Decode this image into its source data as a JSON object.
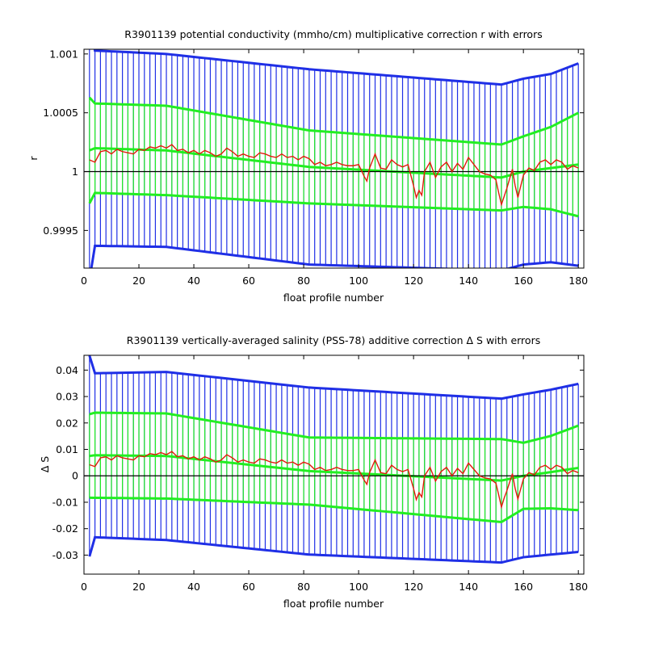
{
  "colors": {
    "error_outer": "#1f2fe6",
    "error_inner": "#22ee22",
    "fit_line": "#22ee22",
    "data_line": "#e11a0c",
    "reference": "#000000"
  },
  "chart_data": [
    {
      "type": "line",
      "title": "R3901139 potential conductivity (mmho/cm) multiplicative correction r with errors",
      "xlabel": "float profile number",
      "ylabel": "r",
      "xlim": [
        0,
        182
      ],
      "ylim": [
        0.99918,
        1.00104
      ],
      "xticks": [
        0,
        20,
        40,
        60,
        80,
        100,
        120,
        140,
        160,
        180
      ],
      "xtick_labels": [
        "0",
        "20",
        "40",
        "60",
        "80",
        "100",
        "120",
        "140",
        "160",
        "180"
      ],
      "yticks": [
        0.9995,
        1.0,
        1.0005,
        1.001
      ],
      "ytick_labels": [
        "0.9995",
        "1",
        "1.0005",
        "1.001"
      ],
      "reference_line": 1.0,
      "grid": false,
      "error_bar_spacing": 2,
      "fit": {
        "x": [
          2,
          3,
          30,
          82,
          152,
          160,
          170,
          180
        ],
        "values": [
          1.00018,
          1.0002,
          1.00018,
          1.00004,
          0.99995,
          1.0,
          1.00003,
          1.00006
        ]
      },
      "inner_error": {
        "x": [
          2,
          3,
          30,
          82,
          152,
          160,
          170,
          180
        ],
        "half_width": [
          0.00045,
          0.00038,
          0.00038,
          0.00031,
          0.00028,
          0.0003,
          0.00035,
          0.00044
        ]
      },
      "outer_error": {
        "x": [
          2,
          3,
          30,
          82,
          152,
          160,
          170,
          180
        ],
        "half_width": [
          0.0011,
          0.00083,
          0.00082,
          0.00083,
          0.00079,
          0.00079,
          0.0008,
          0.00086
        ]
      },
      "series": [
        {
          "x": [
            2,
            4,
            6,
            8,
            10,
            12,
            14,
            16,
            18,
            20,
            22,
            24,
            26,
            28,
            30,
            32,
            34,
            36,
            38,
            40,
            42,
            44,
            46,
            48,
            50,
            52,
            54,
            56,
            58,
            60,
            62,
            64,
            66,
            68,
            70,
            72,
            74,
            76,
            78,
            80,
            82,
            84,
            86,
            88,
            90,
            92,
            94,
            96,
            98,
            100,
            102,
            103,
            104,
            106,
            108,
            110,
            112,
            114,
            116,
            118,
            120,
            121,
            122,
            123,
            124,
            126,
            128,
            130,
            132,
            134,
            136,
            138,
            140,
            142,
            144,
            146,
            148,
            150,
            151,
            152,
            153,
            154,
            156,
            157,
            158,
            160,
            162,
            164,
            166,
            168,
            170,
            172,
            174,
            176,
            178,
            180
          ],
          "values": [
            1.0001,
            1.00008,
            1.00017,
            1.00018,
            1.00015,
            1.00019,
            1.00017,
            1.00016,
            1.00015,
            1.00019,
            1.00018,
            1.00021,
            1.0002,
            1.00022,
            1.0002,
            1.00023,
            1.00018,
            1.00019,
            1.00016,
            1.00018,
            1.00015,
            1.00018,
            1.00016,
            1.00013,
            1.00015,
            1.0002,
            1.00017,
            1.00013,
            1.00015,
            1.00013,
            1.00012,
            1.00016,
            1.00015,
            1.00013,
            1.00012,
            1.00015,
            1.00012,
            1.00013,
            1.0001,
            1.00013,
            1.00011,
            1.00006,
            1.00008,
            1.00005,
            1.00006,
            1.00008,
            1.00006,
            1.00005,
            1.00005,
            1.00006,
            0.99996,
            0.99992,
            1.00003,
            1.00015,
            1.00003,
            1.00002,
            1.0001,
            1.00006,
            1.00004,
            1.00006,
            0.99988,
            0.99978,
            0.99984,
            0.9998,
            1.0,
            1.00008,
            0.99995,
            1.00004,
            1.00008,
            1.0,
            1.00007,
            1.00002,
            1.00012,
            1.00006,
            1.0,
            0.99998,
            0.99997,
            0.99993,
            0.99982,
            0.99972,
            0.99979,
            0.99986,
            1.00002,
            0.99988,
            0.99978,
            0.99997,
            1.00003,
            1.00001,
            1.00008,
            1.0001,
            1.00006,
            1.0001,
            1.00008,
            1.00002,
            1.00005,
            1.00003
          ]
        }
      ]
    },
    {
      "type": "line",
      "title": "R3901139 vertically-averaged salinity (PSS-78) additive correction Δ S with errors",
      "xlabel": "float profile number",
      "ylabel": "Δ S",
      "xlim": [
        0,
        182
      ],
      "ylim": [
        -0.0372,
        0.0456
      ],
      "xticks": [
        0,
        20,
        40,
        60,
        80,
        100,
        120,
        140,
        160,
        180
      ],
      "xtick_labels": [
        "0",
        "20",
        "40",
        "60",
        "80",
        "100",
        "120",
        "140",
        "160",
        "180"
      ],
      "yticks": [
        -0.03,
        -0.02,
        -0.01,
        0,
        0.01,
        0.02,
        0.03,
        0.04
      ],
      "ytick_labels": [
        "-0.03",
        "-0.02",
        "-0.01",
        "0",
        "0.01",
        "0.02",
        "0.03",
        "0.04"
      ],
      "reference_line": 0,
      "grid": false,
      "error_bar_spacing": 2,
      "fit": {
        "x": [
          2,
          3,
          30,
          82,
          152,
          160,
          170,
          180
        ],
        "values": [
          0.0075,
          0.0078,
          0.0075,
          0.0018,
          -0.0018,
          0.0,
          0.0014,
          0.003
        ]
      },
      "inner_error": {
        "x": [
          2,
          3,
          30,
          82,
          152,
          160,
          170,
          180
        ],
        "half_width": [
          0.0158,
          0.0161,
          0.0161,
          0.0127,
          0.0157,
          0.0125,
          0.0137,
          0.016
        ]
      },
      "outer_error": {
        "x": [
          2,
          3,
          30,
          82,
          152,
          160,
          170,
          180
        ],
        "half_width": [
          0.038,
          0.031,
          0.0318,
          0.0316,
          0.031,
          0.0308,
          0.0312,
          0.0318
        ]
      },
      "series": [
        {
          "x": [
            2,
            4,
            6,
            8,
            10,
            12,
            14,
            16,
            18,
            20,
            22,
            24,
            26,
            28,
            30,
            32,
            34,
            36,
            38,
            40,
            42,
            44,
            46,
            48,
            50,
            52,
            54,
            56,
            58,
            60,
            62,
            64,
            66,
            68,
            70,
            72,
            74,
            76,
            78,
            80,
            82,
            84,
            86,
            88,
            90,
            92,
            94,
            96,
            98,
            100,
            102,
            103,
            104,
            106,
            108,
            110,
            112,
            114,
            116,
            118,
            120,
            121,
            122,
            123,
            124,
            126,
            128,
            130,
            132,
            134,
            136,
            138,
            140,
            142,
            144,
            146,
            148,
            150,
            151,
            152,
            153,
            154,
            156,
            157,
            158,
            160,
            162,
            164,
            166,
            168,
            170,
            172,
            174,
            176,
            178,
            180
          ],
          "values": [
            0.0042,
            0.0035,
            0.0068,
            0.0072,
            0.006,
            0.0076,
            0.0068,
            0.0064,
            0.006,
            0.0076,
            0.0072,
            0.0084,
            0.008,
            0.0088,
            0.008,
            0.0092,
            0.0072,
            0.0076,
            0.0064,
            0.0072,
            0.006,
            0.0072,
            0.0064,
            0.0052,
            0.006,
            0.008,
            0.0068,
            0.0052,
            0.006,
            0.0052,
            0.0048,
            0.0064,
            0.006,
            0.0052,
            0.0048,
            0.006,
            0.0048,
            0.0052,
            0.004,
            0.0052,
            0.0044,
            0.0024,
            0.0032,
            0.002,
            0.0024,
            0.0032,
            0.0024,
            0.002,
            0.002,
            0.0024,
            -0.0016,
            -0.0032,
            0.0012,
            0.006,
            0.0012,
            0.0008,
            0.004,
            0.0024,
            0.0016,
            0.0024,
            -0.0048,
            -0.009,
            -0.0064,
            -0.008,
            0.0,
            0.0032,
            -0.002,
            0.0016,
            0.0032,
            0.0,
            0.0028,
            0.0008,
            0.0048,
            0.0024,
            0.0,
            -0.0008,
            -0.0012,
            -0.0028,
            -0.0072,
            -0.0118,
            -0.0084,
            -0.0056,
            0.0008,
            -0.0048,
            -0.0088,
            -0.0012,
            0.0012,
            0.0004,
            0.0032,
            0.004,
            0.0024,
            0.004,
            0.0032,
            0.0008,
            0.002,
            0.0012
          ]
        }
      ]
    }
  ]
}
